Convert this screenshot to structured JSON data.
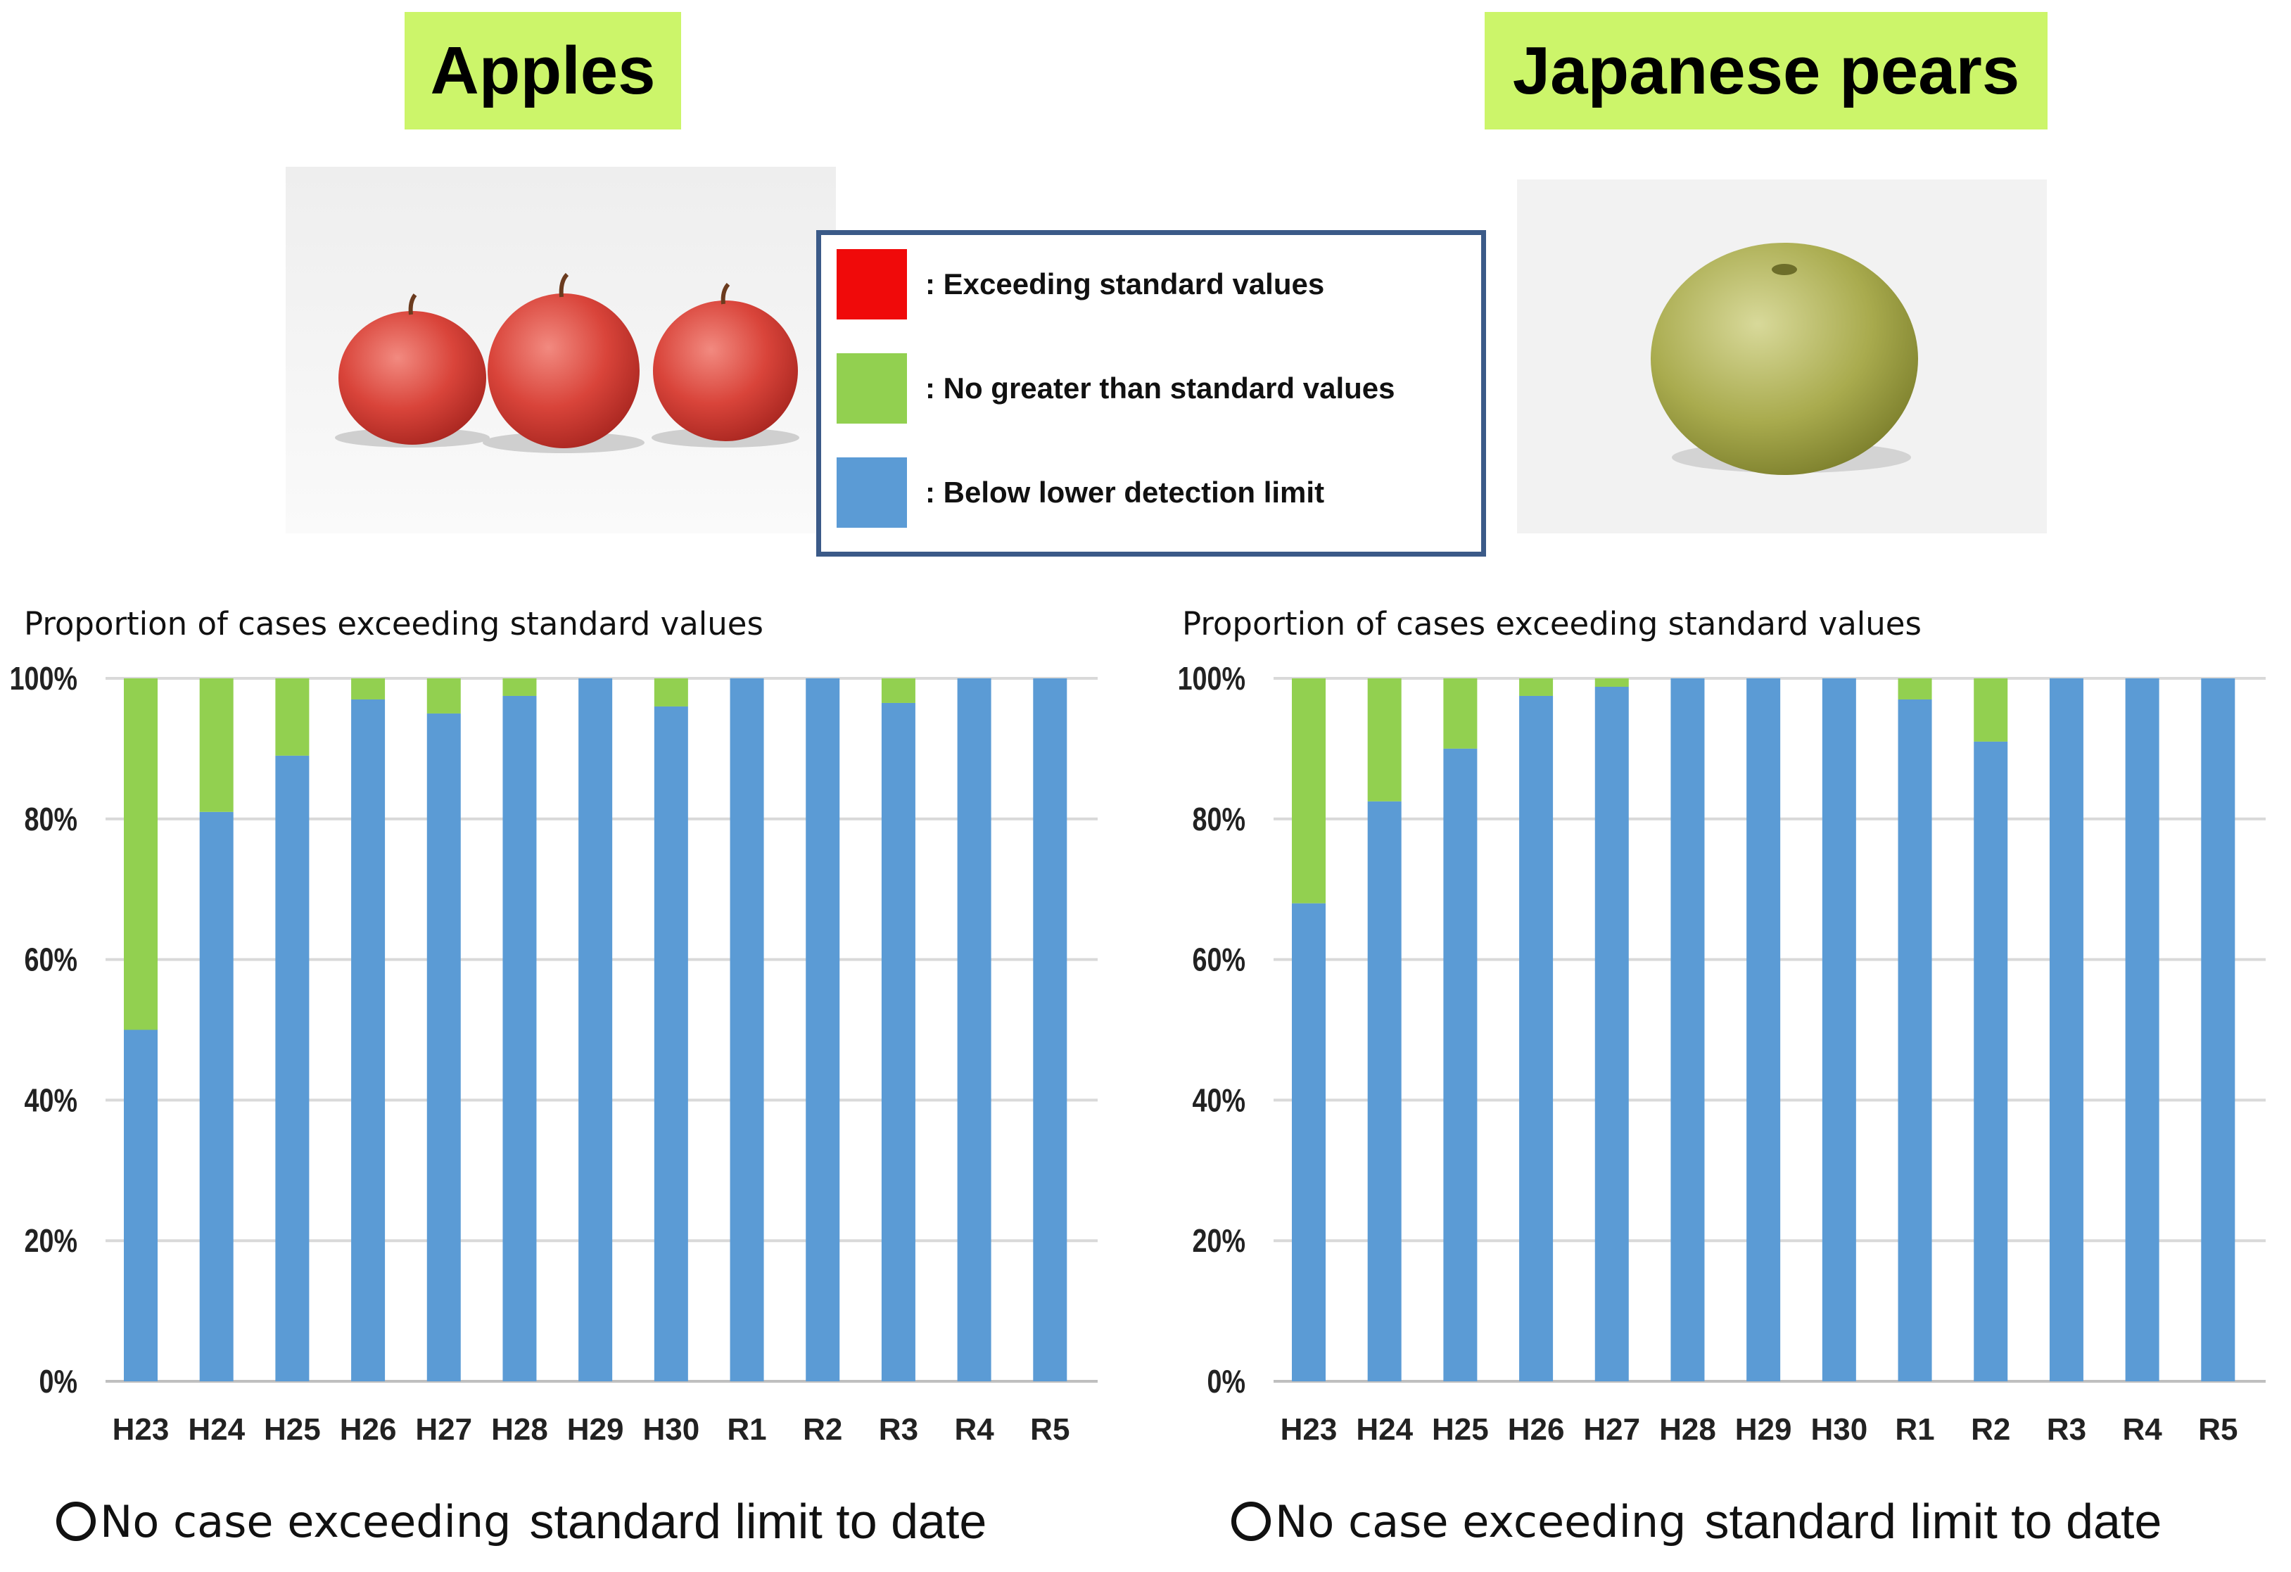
{
  "colors": {
    "exceeding": "#f00a0a",
    "no_greater": "#92d050",
    "below_limit": "#5b9bd5",
    "title_bg": "#ccf56a",
    "legend_border": "#3b5a88"
  },
  "legend": {
    "items": [
      {
        "label": ": Exceeding standard values",
        "color": "#f00a0a"
      },
      {
        "label": ": No greater than standard values",
        "color": "#92d050"
      },
      {
        "label": ": Below lower detection limit",
        "color": "#5b9bd5"
      }
    ]
  },
  "panels": [
    {
      "title": "Apples",
      "photo_icon": "apples-photo",
      "note": {
        "part1": "No case exceeding",
        "part2": "standard limit to date"
      }
    },
    {
      "title": "Japanese pears",
      "photo_icon": "japanese-pear-photo",
      "note": {
        "part1": "No case exceeding",
        "part2": "standard limit to date"
      }
    }
  ],
  "chart_data": [
    {
      "type": "bar",
      "stacked": true,
      "title": "Proportion of cases exceeding standard values",
      "categories": [
        "H23",
        "H24",
        "H25",
        "H26",
        "H27",
        "H28",
        "H29",
        "H30",
        "R1",
        "R2",
        "R3",
        "R4",
        "R5"
      ],
      "series": [
        {
          "name": ": Below lower detection limit",
          "color": "#5b9bd5",
          "values": [
            50,
            81,
            89,
            97,
            95,
            97.5,
            100,
            96,
            100,
            100,
            96.5,
            100,
            100
          ]
        },
        {
          "name": ": No greater than standard values",
          "color": "#92d050",
          "values": [
            50,
            19,
            11,
            3,
            5,
            2.5,
            0,
            4,
            0,
            0,
            3.5,
            0,
            0
          ]
        },
        {
          "name": ": Exceeding standard values",
          "color": "#f00a0a",
          "values": [
            0,
            0,
            0,
            0,
            0,
            0,
            0,
            0,
            0,
            0,
            0,
            0,
            0
          ]
        }
      ],
      "yticks": [
        "0%",
        "20%",
        "40%",
        "60%",
        "80%",
        "100%"
      ],
      "ylim": [
        0,
        100
      ],
      "grid": true
    },
    {
      "type": "bar",
      "stacked": true,
      "title": "Proportion of cases exceeding standard values",
      "categories": [
        "H23",
        "H24",
        "H25",
        "H26",
        "H27",
        "H28",
        "H29",
        "H30",
        "R1",
        "R2",
        "R3",
        "R4",
        "R5"
      ],
      "series": [
        {
          "name": ": Below lower detection limit",
          "color": "#5b9bd5",
          "values": [
            68,
            82.5,
            90,
            97.5,
            98.8,
            100,
            100,
            100,
            97,
            91,
            100,
            100,
            100
          ]
        },
        {
          "name": ": No greater than standard values",
          "color": "#92d050",
          "values": [
            32,
            17.5,
            10,
            2.5,
            1.2,
            0,
            0,
            0,
            3,
            9,
            0,
            0,
            0
          ]
        },
        {
          "name": ": Exceeding standard values",
          "color": "#f00a0a",
          "values": [
            0,
            0,
            0,
            0,
            0,
            0,
            0,
            0,
            0,
            0,
            0,
            0,
            0
          ]
        }
      ],
      "yticks": [
        "0%",
        "20%",
        "40%",
        "60%",
        "80%",
        "100%"
      ],
      "ylim": [
        0,
        100
      ],
      "grid": true
    }
  ]
}
